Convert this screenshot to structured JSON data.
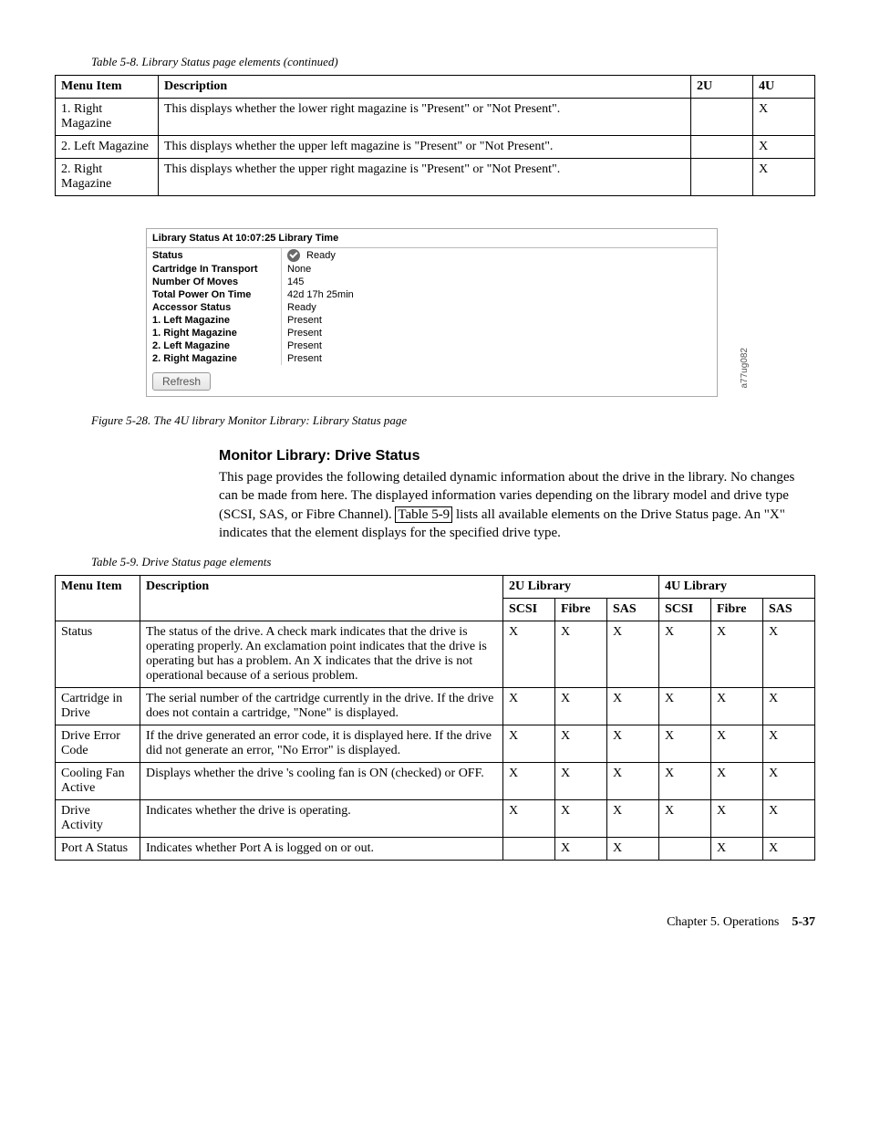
{
  "table58": {
    "caption": "Table 5-8. Library Status page elements (continued)",
    "headers": [
      "Menu Item",
      "Description",
      "2U",
      "4U"
    ],
    "rows": [
      {
        "menu": "1. Right Magazine",
        "desc": "This displays whether the lower right magazine is \"Present\" or \"Not Present\".",
        "c2u": "",
        "c4u": "X"
      },
      {
        "menu": "2. Left Magazine",
        "desc": "This displays whether the upper left magazine is \"Present\" or \"Not Present\".",
        "c2u": "",
        "c4u": "X"
      },
      {
        "menu": "2. Right Magazine",
        "desc": "This displays whether the upper right magazine is \"Present\" or \"Not Present\".",
        "c2u": "",
        "c4u": "X"
      }
    ]
  },
  "screenshot": {
    "title": "Library Status At 10:07:25 Library Time",
    "rows": [
      {
        "label": "Status",
        "value": "Ready",
        "icon": true
      },
      {
        "label": "Cartridge In Transport",
        "value": "None"
      },
      {
        "label": "Number Of Moves",
        "value": "145"
      },
      {
        "label": "Total Power On Time",
        "value": "42d 17h 25min"
      },
      {
        "label": "Accessor Status",
        "value": "Ready"
      },
      {
        "label": "1. Left Magazine",
        "value": "Present"
      },
      {
        "label": "1. Right Magazine",
        "value": "Present"
      },
      {
        "label": "2. Left Magazine",
        "value": "Present"
      },
      {
        "label": "2. Right Magazine",
        "value": "Present"
      }
    ],
    "refresh": "Refresh",
    "sidecode": "a77ug082",
    "figcaption": "Figure 5-28. The 4U library Monitor Library: Library Status page"
  },
  "section": {
    "heading": "Monitor Library: Drive Status",
    "p1": "This page provides the following detailed dynamic information about the drive in the library. No changes can be made from here. The displayed information varies depending on the library model and drive type (SCSI, SAS, or Fibre Channel).",
    "linklabel": "Table 5-9",
    "p2": " lists all available elements on the Drive Status page. An \"X\" indicates that the element displays for the specified drive type."
  },
  "table59": {
    "caption": "Table 5-9. Drive Status page elements",
    "h_menu": "Menu Item",
    "h_desc": "Description",
    "h_2u": "2U Library",
    "h_4u": "4U Library",
    "sub": [
      "SCSI",
      "Fibre",
      "SAS",
      "SCSI",
      "Fibre",
      "SAS"
    ],
    "rows": [
      {
        "menu": "Status",
        "desc": "The status of the drive. A check mark indicates that the drive is operating properly. An exclamation point indicates that the drive is operating but has a problem. An X indicates that the drive is not operational because of a serious problem.",
        "v": [
          "X",
          "X",
          "X",
          "X",
          "X",
          "X"
        ]
      },
      {
        "menu": "Cartridge in Drive",
        "desc": "The serial number of the cartridge currently in the drive. If the drive does not contain a cartridge, \"None\" is displayed.",
        "v": [
          "X",
          "X",
          "X",
          "X",
          "X",
          "X"
        ]
      },
      {
        "menu": "Drive Error Code",
        "desc": "If the drive generated an error code, it is displayed here. If the drive did not generate an error, \"No Error\" is displayed.",
        "v": [
          "X",
          "X",
          "X",
          "X",
          "X",
          "X"
        ]
      },
      {
        "menu": "Cooling Fan Active",
        "desc": "Displays whether the drive 's cooling fan is ON (checked) or OFF.",
        "v": [
          "X",
          "X",
          "X",
          "X",
          "X",
          "X"
        ]
      },
      {
        "menu": "Drive Activity",
        "desc": "Indicates whether the drive is operating.",
        "v": [
          "X",
          "X",
          "X",
          "X",
          "X",
          "X"
        ]
      },
      {
        "menu": "Port A Status",
        "desc": "Indicates whether Port A is logged on or out.",
        "v": [
          "",
          "X",
          "X",
          "",
          "X",
          "X"
        ]
      }
    ]
  },
  "footer": {
    "chapter": "Chapter 5. Operations",
    "page": "5-37"
  }
}
